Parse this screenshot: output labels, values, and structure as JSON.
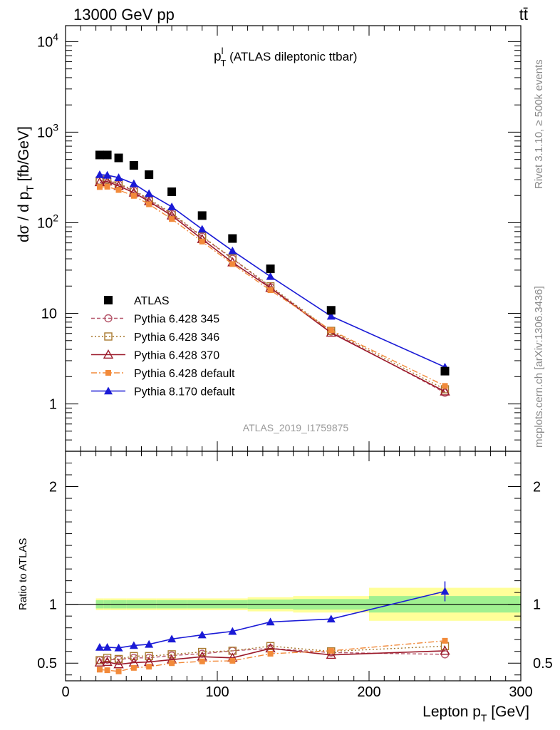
{
  "header": {
    "left": "13000 GeV pp",
    "right": "tt̄"
  },
  "side_text": {
    "rivet": "Rivet 3.1.10, ≥ 500k events",
    "mcplots": "mcplots.cern.ch [arXiv:1306.3436]"
  },
  "plot_title": {
    "main": "p",
    "sup": "l",
    "sub": "T",
    "rest": " (ATLAS dileptonic ttbar)"
  },
  "analysis_label": "ATLAS_2019_I1759875",
  "colors": {
    "atlas": "#000000",
    "p345": "#b5566a",
    "p346": "#a8792f",
    "p370": "#9b1a2a",
    "p6def": "#f28a3a",
    "p8def": "#1a1ad6",
    "band_inner": "#a0f090",
    "band_outer": "#ffff99"
  },
  "chart_data": [
    {
      "type": "scatter",
      "panel": "main",
      "ylabel": "dσ / d pT [fb/GeV]",
      "y_scale": "log",
      "ylim": [
        0.3,
        15000
      ],
      "xlim": [
        0,
        300
      ],
      "y_ticks": [
        {
          "v": 1,
          "label": "1"
        },
        {
          "v": 10,
          "label": "10"
        },
        {
          "v": 100,
          "label": "10",
          "exp": "2"
        },
        {
          "v": 1000,
          "label": "10",
          "exp": "3"
        },
        {
          "v": 10000,
          "label": "10",
          "exp": "4"
        }
      ],
      "x": [
        22.5,
        27.5,
        35,
        45,
        55,
        70,
        90,
        110,
        135,
        175,
        250
      ],
      "legend_position": "center-left",
      "series": [
        {
          "key": "atlas",
          "name": "ATLAS",
          "marker": "square",
          "line": "none",
          "values": [
            560,
            560,
            520,
            430,
            340,
            220,
            120,
            67,
            31,
            10.8,
            2.3
          ]
        },
        {
          "key": "p345",
          "name": "Pythia 6.428 345",
          "marker": "open-circle",
          "line": "dashed",
          "values": [
            292,
            295,
            265,
            225,
            178,
            125,
            70,
            40,
            19.4,
            6.3,
            1.33
          ]
        },
        {
          "key": "p346",
          "name": "Pythia 6.428 346",
          "marker": "open-square",
          "line": "dotted",
          "values": [
            292,
            300,
            270,
            230,
            182,
            128,
            71,
            40.5,
            19.9,
            6.4,
            1.45
          ]
        },
        {
          "key": "p370",
          "name": "Pythia 6.428 370",
          "marker": "open-triangle",
          "line": "solid",
          "values": [
            280,
            285,
            255,
            215,
            172,
            120,
            66,
            36.5,
            19.1,
            6.1,
            1.37
          ]
        },
        {
          "key": "p6def",
          "name": "Pythia 6.428 default",
          "marker": "filled-square",
          "line": "dashdot",
          "values": [
            248,
            250,
            230,
            198,
            160,
            110,
            62,
            35,
            18,
            6.5,
            1.58
          ]
        },
        {
          "key": "p8def",
          "name": "Pythia 8.170 default",
          "marker": "filled-triangle",
          "line": "solid",
          "values": [
            340,
            335,
            315,
            270,
            210,
            150,
            85,
            49,
            25.5,
            9.3,
            2.55
          ]
        }
      ]
    },
    {
      "type": "line",
      "panel": "ratio",
      "ylabel": "Ratio to ATLAS",
      "xlabel": "Lepton pT [GeV]",
      "xlim": [
        0,
        300
      ],
      "ylim": [
        0.35,
        2.3
      ],
      "x_ticks": [
        0,
        100,
        200,
        300
      ],
      "y_ticks": [
        0.5,
        1,
        2
      ],
      "x": [
        22.5,
        27.5,
        35,
        45,
        55,
        70,
        90,
        110,
        135,
        175,
        250
      ],
      "bins": [
        [
          20,
          25
        ],
        [
          25,
          30
        ],
        [
          30,
          40
        ],
        [
          40,
          50
        ],
        [
          50,
          60
        ],
        [
          60,
          80
        ],
        [
          80,
          100
        ],
        [
          100,
          120
        ],
        [
          120,
          150
        ],
        [
          150,
          200
        ],
        [
          200,
          300
        ]
      ],
      "band_inner": [
        0.035,
        0.035,
        0.035,
        0.035,
        0.035,
        0.035,
        0.035,
        0.035,
        0.04,
        0.045,
        0.07
      ],
      "band_outer": [
        0.05,
        0.05,
        0.05,
        0.05,
        0.05,
        0.05,
        0.05,
        0.05,
        0.06,
        0.07,
        0.14
      ],
      "series": [
        {
          "key": "p345",
          "values": [
            0.525,
            0.53,
            0.53,
            0.545,
            0.545,
            0.565,
            0.58,
            0.605,
            0.625,
            0.59,
            0.575
          ]
        },
        {
          "key": "p346",
          "values": [
            0.525,
            0.545,
            0.535,
            0.56,
            0.56,
            0.575,
            0.595,
            0.605,
            0.645,
            0.6,
            0.645
          ]
        },
        {
          "key": "p370",
          "values": [
            0.505,
            0.51,
            0.49,
            0.505,
            0.51,
            0.53,
            0.555,
            0.545,
            0.625,
            0.57,
            0.605
          ]
        },
        {
          "key": "p6def",
          "values": [
            0.445,
            0.44,
            0.43,
            0.46,
            0.47,
            0.5,
            0.515,
            0.52,
            0.58,
            0.605,
            0.69
          ]
        },
        {
          "key": "p8def",
          "values": [
            0.635,
            0.635,
            0.63,
            0.65,
            0.66,
            0.705,
            0.74,
            0.77,
            0.85,
            0.875,
            1.11
          ]
        }
      ]
    }
  ]
}
